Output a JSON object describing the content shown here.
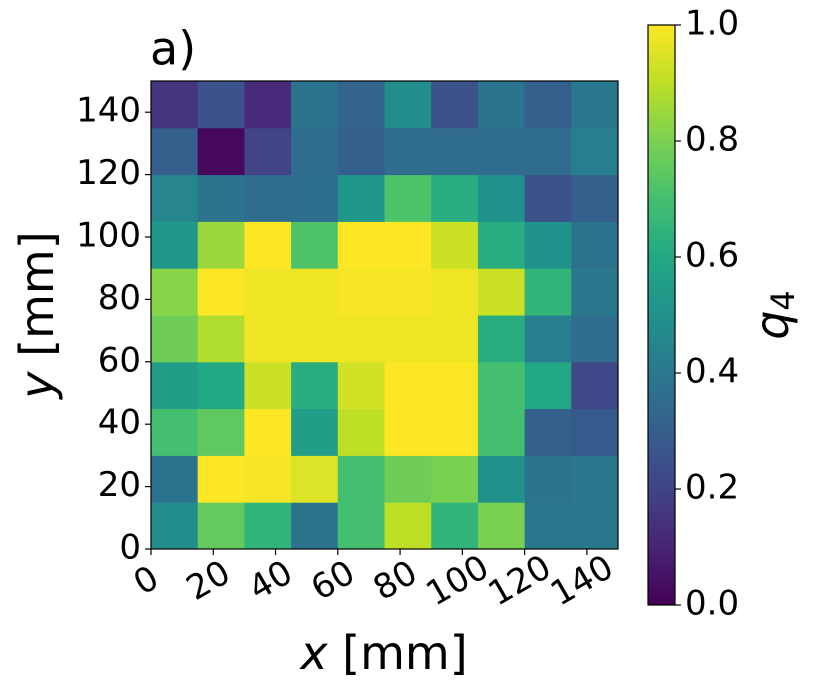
{
  "chart_data": {
    "type": "heatmap",
    "title": "a)",
    "x_label": {
      "symbol": "x",
      "unit": "[mm]"
    },
    "y_label": {
      "symbol": "y",
      "unit": "[mm]"
    },
    "colorbar_label": {
      "symbol": "q",
      "subscript": "4"
    },
    "colormap": "viridis",
    "xlim": [
      0,
      150
    ],
    "ylim": [
      0,
      150
    ],
    "xticks": [
      0,
      20,
      40,
      60,
      80,
      100,
      120,
      140
    ],
    "yticks": [
      0,
      20,
      40,
      60,
      80,
      100,
      120,
      140
    ],
    "clim": [
      0,
      1
    ],
    "cticks": [
      {
        "value": 0,
        "label": "0.0"
      },
      {
        "value": 0.2,
        "label": "0.2"
      },
      {
        "value": 0.4,
        "label": "0.4"
      },
      {
        "value": 0.6,
        "label": "0.6"
      },
      {
        "value": 0.8,
        "label": "0.8"
      },
      {
        "value": 1,
        "label": "1.0"
      }
    ],
    "z": [
      [
        0.48,
        0.76,
        0.65,
        0.38,
        0.7,
        0.9,
        0.65,
        0.8,
        0.4,
        0.4
      ],
      [
        0.38,
        1.0,
        0.99,
        0.95,
        0.7,
        0.78,
        0.8,
        0.5,
        0.38,
        0.4
      ],
      [
        0.7,
        0.75,
        1.0,
        0.55,
        0.9,
        1.0,
        1.0,
        0.7,
        0.3,
        0.28
      ],
      [
        0.55,
        0.6,
        0.92,
        0.62,
        0.93,
        1.0,
        1.0,
        0.7,
        0.6,
        0.22
      ],
      [
        0.78,
        0.88,
        0.98,
        0.98,
        0.98,
        0.98,
        0.98,
        0.62,
        0.42,
        0.35
      ],
      [
        0.82,
        1.0,
        0.98,
        0.98,
        0.99,
        0.99,
        0.98,
        0.92,
        0.65,
        0.4
      ],
      [
        0.52,
        0.85,
        1.0,
        0.72,
        1.0,
        1.0,
        0.92,
        0.62,
        0.5,
        0.38
      ],
      [
        0.45,
        0.38,
        0.35,
        0.36,
        0.52,
        0.72,
        0.62,
        0.5,
        0.25,
        0.3
      ],
      [
        0.3,
        0.02,
        0.2,
        0.35,
        0.3,
        0.35,
        0.35,
        0.35,
        0.35,
        0.42
      ],
      [
        0.15,
        0.25,
        0.12,
        0.38,
        0.32,
        0.48,
        0.25,
        0.38,
        0.3,
        0.4
      ]
    ]
  }
}
